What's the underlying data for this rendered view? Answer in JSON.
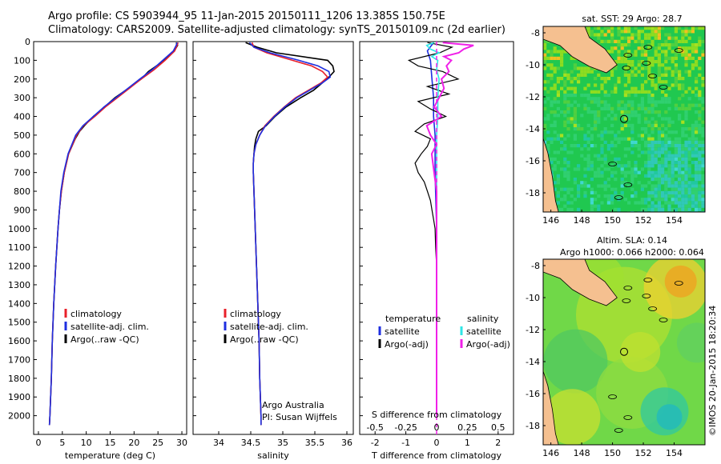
{
  "header": {
    "line1": "Argo profile: CS 5903944_95 11-Jan-2015 20150111_1206 13.385S 150.75E",
    "line2": "Climatology: CARS2009. Satellite-adjusted climatology: synTS_20150109.nc (2d earlier)"
  },
  "footer": {
    "stamp": "©IMOS 20-Jan-2015 18:20:34"
  },
  "colors": {
    "climatology": "#e8202a",
    "satellite": "#1f2fe0",
    "argo": "#000000",
    "sat_s": "#2ee6e6",
    "argo_s": "#f020e8"
  },
  "chart_data": [
    {
      "id": "temperature",
      "type": "line",
      "xlabel": "temperature (deg C)",
      "xlim": [
        -1,
        31
      ],
      "xticks": [
        0,
        5,
        10,
        15,
        20,
        25,
        30
      ],
      "xtick_labels": [
        "0",
        "5",
        "10",
        "15",
        "20",
        "25",
        "30"
      ],
      "ylim": [
        2100,
        0
      ],
      "yticks": [
        0,
        100,
        200,
        300,
        400,
        500,
        600,
        700,
        800,
        900,
        1000,
        1100,
        1200,
        1300,
        1400,
        1500,
        1600,
        1700,
        1800,
        1900,
        2000
      ],
      "ytick_labels": [
        "0",
        "100",
        "200",
        "300",
        "400",
        "500",
        "600",
        "700",
        "800",
        "900",
        "1000",
        "1100",
        "1200",
        "1300",
        "1400",
        "1500",
        "1600",
        "1700",
        "1800",
        "1900",
        "2000"
      ],
      "legend": [
        "climatology",
        "satellite-adj. clim.",
        "Argo(..raw -QC)"
      ],
      "series": [
        {
          "name": "climatology",
          "depth": [
            5,
            20,
            50,
            100,
            150,
            200,
            250,
            300,
            350,
            400,
            450,
            500,
            600,
            700,
            800,
            900,
            1000,
            1200,
            1400,
            1600,
            1800,
            2000,
            2050
          ],
          "values": [
            29.2,
            29.0,
            28.5,
            26.5,
            24.2,
            21.5,
            19.0,
            16.5,
            14.0,
            11.8,
            9.4,
            8.0,
            6.3,
            5.4,
            4.8,
            4.4,
            4.1,
            3.6,
            3.2,
            2.9,
            2.7,
            2.4,
            2.3
          ]
        },
        {
          "name": "satellite-adj. clim.",
          "depth": [
            5,
            20,
            50,
            100,
            150,
            200,
            250,
            300,
            350,
            400,
            450,
            500,
            600,
            700,
            800,
            900,
            1000,
            1200,
            1400,
            1600,
            1800,
            2000,
            2050
          ],
          "values": [
            29.0,
            28.8,
            28.2,
            26.0,
            23.8,
            21.2,
            18.7,
            16.2,
            13.7,
            11.5,
            9.3,
            7.8,
            6.2,
            5.3,
            4.7,
            4.4,
            4.1,
            3.6,
            3.2,
            2.9,
            2.7,
            2.4,
            2.3
          ]
        },
        {
          "name": "Argo(..raw -QC)",
          "depth": [
            5,
            20,
            50,
            80,
            120,
            160,
            200,
            250,
            300,
            350,
            400,
            450,
            480,
            520,
            600,
            700,
            800,
            900,
            1000,
            1200,
            1400,
            1600,
            1800,
            2000,
            2050
          ],
          "values": [
            28.8,
            29.1,
            28.4,
            27.0,
            25.2,
            23.0,
            21.5,
            18.8,
            16.0,
            13.8,
            11.5,
            9.6,
            8.6,
            7.7,
            6.3,
            5.4,
            4.8,
            4.4,
            4.1,
            3.6,
            3.2,
            2.9,
            2.7,
            2.4,
            2.3
          ]
        }
      ]
    },
    {
      "id": "salinity",
      "type": "line",
      "xlabel": "salinity",
      "xlim": [
        33.6,
        36.1
      ],
      "xticks": [
        34,
        34.5,
        35,
        35.5,
        36
      ],
      "xtick_labels": [
        "34",
        "34.5",
        "35",
        "35.5",
        "36"
      ],
      "ylim": [
        2100,
        0
      ],
      "legend": [
        "climatology",
        "satellite-adj. clim.",
        "Argo(..raw -QC)"
      ],
      "annotation": [
        "Argo Australia",
        "PI: Susan Wijffels"
      ],
      "series": [
        {
          "name": "climatology",
          "depth": [
            5,
            30,
            60,
            100,
            130,
            160,
            190,
            220,
            260,
            300,
            350,
            400,
            450,
            500,
            550,
            600,
            650,
            700,
            800,
            900,
            1000,
            1200,
            1400,
            1600,
            1800,
            2000,
            2050
          ],
          "values": [
            34.52,
            34.55,
            34.75,
            35.15,
            35.45,
            35.62,
            35.7,
            35.6,
            35.4,
            35.2,
            35.02,
            34.86,
            34.72,
            34.64,
            34.58,
            34.55,
            34.54,
            34.54,
            34.55,
            34.56,
            34.57,
            34.59,
            34.61,
            34.63,
            34.64,
            34.66,
            34.66
          ]
        },
        {
          "name": "satellite-adj. clim.",
          "depth": [
            5,
            30,
            60,
            100,
            130,
            160,
            190,
            220,
            260,
            300,
            350,
            400,
            450,
            500,
            550,
            600,
            650,
            700,
            800,
            900,
            1000,
            1200,
            1400,
            1600,
            1800,
            2000,
            2050
          ],
          "values": [
            34.48,
            34.55,
            34.8,
            35.25,
            35.55,
            35.72,
            35.74,
            35.62,
            35.42,
            35.22,
            35.03,
            34.87,
            34.73,
            34.64,
            34.58,
            34.55,
            34.54,
            34.54,
            34.55,
            34.56,
            34.57,
            34.59,
            34.61,
            34.63,
            34.64,
            34.66,
            34.66
          ]
        },
        {
          "name": "Argo(..raw -QC)",
          "depth": [
            5,
            30,
            60,
            100,
            130,
            160,
            190,
            220,
            260,
            300,
            350,
            400,
            450,
            480,
            520,
            560,
            600,
            650,
            700,
            800,
            900,
            1000,
            1200,
            1400,
            1600,
            1800,
            2000,
            2050
          ],
          "values": [
            34.42,
            34.6,
            34.9,
            35.7,
            35.78,
            35.8,
            35.72,
            35.62,
            35.48,
            35.28,
            35.05,
            34.88,
            34.74,
            34.62,
            34.58,
            34.56,
            34.55,
            34.54,
            34.54,
            34.55,
            34.56,
            34.57,
            34.59,
            34.61,
            34.63,
            34.64,
            34.66,
            34.66
          ]
        }
      ]
    },
    {
      "id": "differences",
      "type": "line",
      "xlabel": "T difference from climatology",
      "xlabel_top": "S difference from climatology",
      "xlim": [
        -2.5,
        2.5
      ],
      "xticks": [
        -2,
        -1,
        0,
        1,
        2
      ],
      "xtick_labels": [
        "-2",
        "-1",
        "0",
        "1",
        "2"
      ],
      "s_xticks": [
        -0.5,
        -0.25,
        0,
        0.25,
        0.5
      ],
      "s_xtick_labels": [
        "-0.5",
        "-0.25",
        "0",
        "0.25",
        "0.5"
      ],
      "ylim": [
        2100,
        0
      ],
      "legend_temperature": {
        "title": "temperature",
        "items": [
          "satellite",
          "Argo(-adj)"
        ]
      },
      "legend_salinity": {
        "title": "salinity",
        "items": [
          "satellite",
          "Argo(-adj)"
        ]
      },
      "series": [
        {
          "name": "T satellite",
          "depth": [
            5,
            50,
            100,
            200,
            300,
            400,
            500,
            700,
            1000,
            1300,
            1600,
            2000
          ],
          "values": [
            -0.1,
            -0.3,
            -0.2,
            -0.15,
            -0.1,
            -0.1,
            -0.05,
            -0.05,
            0,
            0,
            0,
            0
          ]
        },
        {
          "name": "T Argo(-adj)",
          "depth": [
            5,
            30,
            60,
            100,
            130,
            160,
            200,
            240,
            280,
            320,
            360,
            400,
            440,
            480,
            520,
            560,
            600,
            650,
            700,
            750,
            800,
            850,
            900,
            950,
            1000,
            1100,
            1200,
            1300
          ],
          "values": [
            -0.3,
            0.5,
            0.1,
            -0.9,
            -0.6,
            0.2,
            0.7,
            -0.3,
            0.4,
            -0.6,
            -0.2,
            0.3,
            -0.4,
            -0.7,
            -0.2,
            -0.3,
            -0.5,
            -0.7,
            -0.6,
            -0.4,
            -0.3,
            -0.2,
            -0.15,
            -0.1,
            -0.05,
            -0.03,
            0,
            0
          ]
        },
        {
          "name": "S satellite",
          "depth": [
            5,
            20,
            40,
            60,
            80,
            100,
            150,
            200,
            300,
            400,
            500,
            700,
            1000,
            1300,
            1600,
            2000
          ],
          "values": [
            -0.02,
            -0.08,
            -0.05,
            0.02,
            -0.04,
            0.01,
            0.0,
            0.02,
            0.01,
            0.01,
            0.0,
            0.0,
            0.0,
            0.0,
            0.0,
            0.0
          ]
        },
        {
          "name": "S Argo(-adj)",
          "depth": [
            5,
            20,
            40,
            60,
            80,
            100,
            130,
            160,
            200,
            250,
            300,
            350,
            400,
            450,
            500,
            550,
            600,
            700,
            800,
            1000,
            1300,
            1600,
            2000
          ],
          "values": [
            0.05,
            0.3,
            0.22,
            0.18,
            0.06,
            0.12,
            0.08,
            0.1,
            0.04,
            0.06,
            0.02,
            -0.02,
            0.04,
            -0.08,
            -0.05,
            0.0,
            -0.04,
            -0.02,
            0.0,
            0.0,
            0.0,
            0.0,
            0.0
          ]
        }
      ]
    },
    {
      "id": "sst_map",
      "type": "heatmap",
      "title": "sat. SST: 29 Argo: 28.7",
      "xlim": [
        145.5,
        156
      ],
      "ylim": [
        -19.2,
        -7.6
      ],
      "xticks": [
        146,
        148,
        150,
        152,
        154
      ],
      "yticks": [
        -8,
        -10,
        -12,
        -14,
        -16,
        -18
      ],
      "xtick_labels": [
        "146",
        "148",
        "150",
        "152",
        "154"
      ],
      "ytick_labels": [
        "-8",
        "-10",
        "-12",
        "-14",
        "-16",
        "-18"
      ],
      "argo_position": [
        150.75,
        -13.385
      ]
    },
    {
      "id": "sla_map",
      "type": "heatmap",
      "title": "Altim. SLA: 0.14",
      "subtitle": "Argo h1000: 0.066 h2000: 0.064",
      "xlim": [
        145.5,
        156
      ],
      "ylim": [
        -19.2,
        -7.6
      ],
      "xticks": [
        146,
        148,
        150,
        152,
        154
      ],
      "yticks": [
        -8,
        -10,
        -12,
        -14,
        -16,
        -18
      ],
      "xtick_labels": [
        "146",
        "148",
        "150",
        "152",
        "154"
      ],
      "ytick_labels": [
        "-8",
        "-10",
        "-12",
        "-14",
        "-16",
        "-18"
      ],
      "argo_position": [
        150.75,
        -13.385
      ]
    }
  ]
}
